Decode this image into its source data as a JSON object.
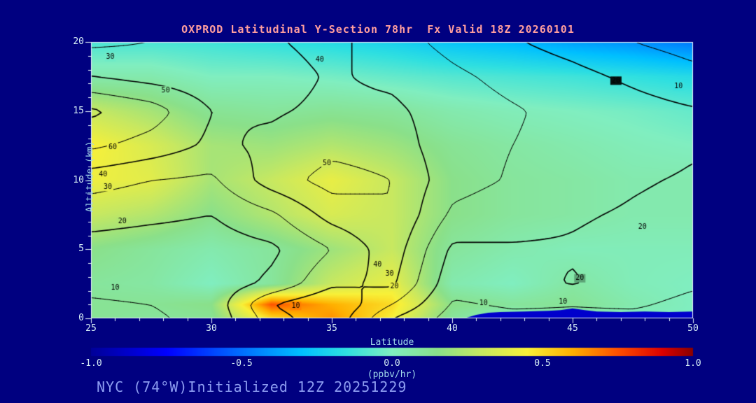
{
  "title": "OXPROD Latitudinal Y-Section 78hr  Fx Valid 18Z 20260101",
  "footer": "NYC (74°W)Initialized 12Z 20251229",
  "axes": {
    "x_label": "Latitude",
    "y_label": "Altitude (km)",
    "x_ticks": [
      25,
      30,
      35,
      40,
      45,
      50
    ],
    "y_ticks": [
      0,
      5,
      10,
      15,
      20
    ],
    "x_range": [
      25,
      50
    ],
    "y_range": [
      0,
      20
    ],
    "x_minor_step": 1,
    "y_minor_step": 1
  },
  "colorbar": {
    "label": "(ppbv/hr)",
    "tick_labels": [
      "-1.0",
      "-0.5",
      "0.0",
      "0.5",
      "1.0"
    ],
    "range": [
      -1,
      1
    ],
    "stops": [
      [
        -1.0,
        "#000099"
      ],
      [
        -0.75,
        "#0000ff"
      ],
      [
        -0.5,
        "#0070ff"
      ],
      [
        -0.3,
        "#00c0ff"
      ],
      [
        -0.15,
        "#30e0e0"
      ],
      [
        0.0,
        "#80eec0"
      ],
      [
        0.15,
        "#8ae08a"
      ],
      [
        0.3,
        "#c8e860"
      ],
      [
        0.45,
        "#f8f038"
      ],
      [
        0.6,
        "#ffb000"
      ],
      [
        0.75,
        "#ff5000"
      ],
      [
        0.9,
        "#dd0000"
      ],
      [
        1.0,
        "#880000"
      ]
    ]
  },
  "colors": {
    "background": "#000080",
    "title_text": "#ff9e9e",
    "axis_text": "#9fd8ea",
    "tick_text": "#d8f0f6",
    "footer_text": "#8c9cf0",
    "contour_line": "#000000",
    "tick_mark": "#e6f4fa",
    "terrain_fill": "#0000cc"
  },
  "chart_data": {
    "type": "heatmap",
    "title": "OXPROD Latitudinal Y-Section 78hr  Fx Valid 18Z 20260101",
    "xlabel": "Latitude",
    "ylabel": "Altitude (km)",
    "xlim": [
      25,
      50
    ],
    "ylim": [
      0,
      20
    ],
    "units": "ppbv/hr",
    "x_latitudes": [
      25,
      27.5,
      30,
      32.5,
      35,
      37.5,
      40,
      42.5,
      45,
      47.5,
      50
    ],
    "y_altitudes_km": [
      0,
      1,
      2.5,
      5,
      7.5,
      10,
      12.5,
      15,
      17.5,
      20
    ],
    "fill_values_ppbv_hr": [
      [
        0.12,
        0.1,
        0.12,
        0.5,
        0.65,
        0.45,
        0.1,
        0.0,
        0.05,
        0.0,
        0.0
      ],
      [
        0.12,
        0.12,
        0.15,
        0.75,
        0.6,
        0.5,
        0.15,
        0.1,
        0.12,
        0.05,
        0.0
      ],
      [
        0.1,
        0.08,
        0.0,
        0.1,
        0.3,
        0.4,
        0.05,
        0.0,
        0.08,
        0.02,
        0.0
      ],
      [
        0.15,
        0.1,
        0.05,
        0.1,
        0.2,
        0.3,
        0.1,
        0.05,
        0.02,
        0.02,
        0.02
      ],
      [
        0.3,
        0.25,
        0.15,
        0.25,
        0.35,
        0.3,
        0.15,
        0.1,
        0.08,
        0.05,
        0.05
      ],
      [
        0.42,
        0.38,
        0.22,
        0.3,
        0.4,
        0.3,
        0.15,
        0.1,
        0.08,
        0.05,
        0.05
      ],
      [
        0.45,
        0.35,
        0.22,
        0.2,
        0.25,
        0.2,
        0.12,
        0.08,
        0.05,
        0.02,
        0.0
      ],
      [
        0.3,
        0.22,
        0.12,
        0.1,
        0.12,
        0.1,
        0.05,
        0.02,
        0.0,
        -0.02,
        -0.05
      ],
      [
        0.05,
        0.05,
        0.0,
        0.0,
        -0.02,
        -0.05,
        -0.08,
        -0.1,
        -0.12,
        -0.15,
        -0.18
      ],
      [
        -0.1,
        -0.1,
        -0.12,
        -0.15,
        -0.18,
        -0.22,
        -0.28,
        -0.32,
        -0.38,
        -0.42,
        -0.48
      ]
    ],
    "contour_levels": [
      10,
      20,
      30,
      40,
      50,
      60
    ],
    "contour_values": [
      [
        8,
        9,
        12,
        35,
        48,
        20,
        6,
        8,
        9,
        8,
        7
      ],
      [
        9,
        10,
        13,
        40,
        50,
        30,
        9,
        11,
        10,
        11,
        8
      ],
      [
        12,
        13,
        14,
        22,
        38,
        42,
        13,
        15,
        21,
        14,
        11
      ],
      [
        16,
        15,
        15,
        18,
        30,
        46,
        18,
        19,
        19,
        17,
        14
      ],
      [
        24,
        22,
        20,
        28,
        44,
        50,
        28,
        24,
        21,
        19,
        17
      ],
      [
        34,
        30,
        28,
        45,
        54,
        50,
        34,
        29,
        24,
        21,
        19
      ],
      [
        52,
        46,
        38,
        42,
        47,
        45,
        34,
        30,
        27,
        24,
        21
      ],
      [
        62,
        55,
        40,
        39,
        42,
        42,
        35,
        31,
        27,
        24,
        21
      ],
      [
        40,
        36,
        33,
        36,
        41,
        38,
        32,
        27,
        23,
        18,
        13
      ],
      [
        28,
        30,
        33,
        39,
        43,
        34,
        27,
        21,
        16,
        10,
        6
      ]
    ],
    "contour_labels": [
      {
        "lat": 25.8,
        "alt": 18.9,
        "text": "30"
      },
      {
        "lat": 28.1,
        "alt": 16.5,
        "text": "50"
      },
      {
        "lat": 25.9,
        "alt": 12.4,
        "text": "60"
      },
      {
        "lat": 25.5,
        "alt": 10.4,
        "text": "40"
      },
      {
        "lat": 25.7,
        "alt": 9.5,
        "text": "30"
      },
      {
        "lat": 26.3,
        "alt": 7.0,
        "text": "20"
      },
      {
        "lat": 26.0,
        "alt": 2.2,
        "text": "10"
      },
      {
        "lat": 34.5,
        "alt": 18.7,
        "text": "40"
      },
      {
        "lat": 34.8,
        "alt": 11.2,
        "text": "50"
      },
      {
        "lat": 36.9,
        "alt": 3.9,
        "text": "40"
      },
      {
        "lat": 37.4,
        "alt": 3.2,
        "text": "30"
      },
      {
        "lat": 37.6,
        "alt": 2.3,
        "text": "20"
      },
      {
        "lat": 33.5,
        "alt": 0.9,
        "text": "10"
      },
      {
        "lat": 46.8,
        "alt": 17.2,
        "text": "20"
      },
      {
        "lat": 49.4,
        "alt": 16.8,
        "text": "10"
      },
      {
        "lat": 47.9,
        "alt": 6.6,
        "text": "20"
      },
      {
        "lat": 41.3,
        "alt": 1.1,
        "text": "10"
      },
      {
        "lat": 44.6,
        "alt": 1.2,
        "text": "10"
      },
      {
        "lat": 45.3,
        "alt": 2.9,
        "text": "20"
      }
    ],
    "terrain": {
      "lats": [
        40.5,
        41,
        41.5,
        42,
        43,
        44,
        44.5,
        45,
        45.5,
        46,
        47,
        48,
        49,
        50
      ],
      "heights_km": [
        0,
        0.25,
        0.4,
        0.45,
        0.5,
        0.55,
        0.6,
        0.72,
        0.6,
        0.5,
        0.45,
        0.5,
        0.45,
        0.5
      ]
    }
  }
}
